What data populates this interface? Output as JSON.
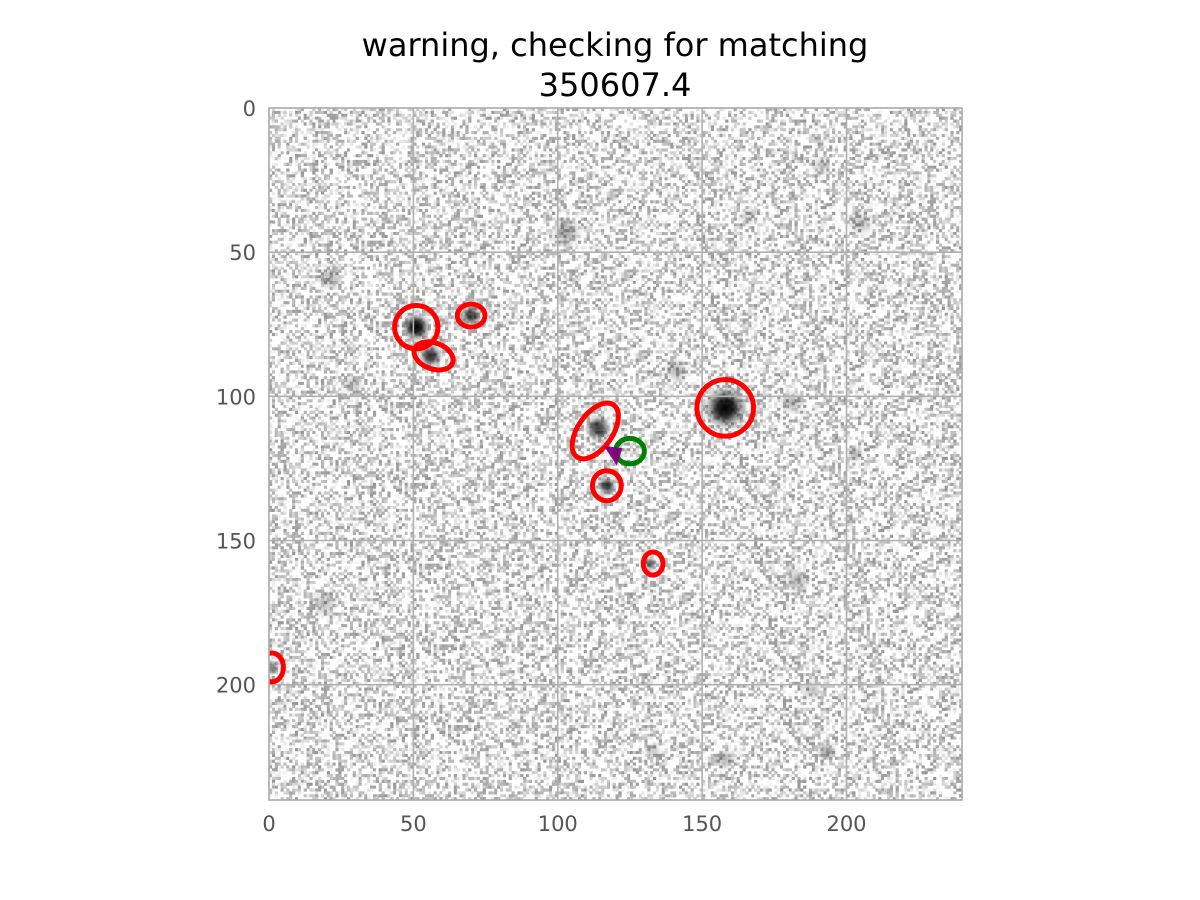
{
  "chart_data": {
    "type": "scatter",
    "title": "warning, checking for matching",
    "subtitle": "350607.4",
    "xlabel": "",
    "ylabel": "",
    "xlim": [
      0,
      240
    ],
    "ylim": [
      240,
      0
    ],
    "y_inverted": true,
    "grid": true,
    "xticks": [
      0,
      50,
      100,
      150,
      200
    ],
    "yticks": [
      0,
      50,
      100,
      150,
      200
    ],
    "background": "grayscale noise image",
    "sources": [
      {
        "x": 51,
        "y": 76,
        "intensity": 1.0,
        "spread": 2.4
      },
      {
        "x": 56,
        "y": 86,
        "intensity": 0.8,
        "spread": 2.0
      },
      {
        "x": 70,
        "y": 72,
        "intensity": 0.75,
        "spread": 1.8
      },
      {
        "x": 158,
        "y": 104,
        "intensity": 1.0,
        "spread": 3.6
      },
      {
        "x": 114,
        "y": 111,
        "intensity": 0.75,
        "spread": 2.2
      },
      {
        "x": 117,
        "y": 131,
        "intensity": 0.75,
        "spread": 1.6
      },
      {
        "x": 132,
        "y": 158,
        "intensity": 0.6,
        "spread": 1.2
      },
      {
        "x": 1,
        "y": 194,
        "intensity": 0.5,
        "spread": 1.4
      },
      {
        "x": 103,
        "y": 43,
        "intensity": 0.3,
        "spread": 2.6
      },
      {
        "x": 21,
        "y": 59,
        "intensity": 0.25,
        "spread": 2.2
      },
      {
        "x": 141,
        "y": 91,
        "intensity": 0.25,
        "spread": 2.2
      },
      {
        "x": 181,
        "y": 102,
        "intensity": 0.25,
        "spread": 2.2
      },
      {
        "x": 183,
        "y": 164,
        "intensity": 0.25,
        "spread": 2.2
      },
      {
        "x": 19,
        "y": 172,
        "intensity": 0.22,
        "spread": 2.4
      },
      {
        "x": 158,
        "y": 226,
        "intensity": 0.25,
        "spread": 2.0
      },
      {
        "x": 193,
        "y": 223,
        "intensity": 0.3,
        "spread": 1.8
      },
      {
        "x": 188,
        "y": 202,
        "intensity": 0.2,
        "spread": 2.0
      },
      {
        "x": 203,
        "y": 120,
        "intensity": 0.25,
        "spread": 1.6
      },
      {
        "x": 205,
        "y": 40,
        "intensity": 0.2,
        "spread": 2.4
      },
      {
        "x": 29,
        "y": 96,
        "intensity": 0.2,
        "spread": 2.0
      },
      {
        "x": 191,
        "y": 20,
        "intensity": 0.15,
        "spread": 2.0
      },
      {
        "x": 166,
        "y": 38,
        "intensity": 0.15,
        "spread": 1.8
      },
      {
        "x": 133,
        "y": 223,
        "intensity": 0.2,
        "spread": 1.6
      }
    ],
    "series": [
      {
        "marker": "ellipse",
        "color": "#ff0000",
        "points": [
          {
            "x": 51,
            "y": 76,
            "rx": 7.5,
            "ry": 7.5,
            "angle": 0
          },
          {
            "x": 57,
            "y": 86,
            "rx": 7,
            "ry": 4.5,
            "angle": 20
          },
          {
            "x": 70,
            "y": 72,
            "rx": 4.8,
            "ry": 4,
            "angle": 0
          },
          {
            "x": 158,
            "y": 104,
            "rx": 9.8,
            "ry": 9.8,
            "angle": 0
          },
          {
            "x": 113,
            "y": 112,
            "rx": 11,
            "ry": 6,
            "angle": -55
          },
          {
            "x": 117,
            "y": 131,
            "rx": 5,
            "ry": 5.2,
            "angle": 0
          },
          {
            "x": 133,
            "y": 158,
            "rx": 3.4,
            "ry": 4,
            "angle": 0
          },
          {
            "x": 1,
            "y": 194,
            "rx": 4,
            "ry": 5,
            "angle": 0
          }
        ]
      },
      {
        "marker": "ellipse",
        "color": "#008000",
        "points": [
          {
            "x": 125,
            "y": 119,
            "rx": 5,
            "ry": 4.4,
            "angle": 0
          }
        ]
      },
      {
        "marker": "triangle",
        "color": "#800080",
        "points": [
          {
            "x": 120,
            "y": 120,
            "size": 4
          }
        ]
      }
    ]
  }
}
